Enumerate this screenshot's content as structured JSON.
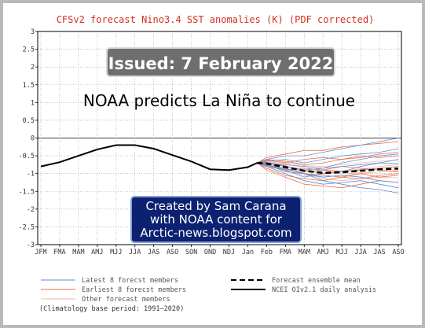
{
  "chart_data": {
    "type": "line",
    "title": "CFSv2 forecast Nino3.4 SST anomalies (K) (PDF corrected)",
    "categories": [
      "JFM",
      "FMA",
      "MAM",
      "AMJ",
      "MJJ",
      "JJA",
      "JAS",
      "ASO",
      "SON",
      "OND",
      "NDJ",
      "Jan",
      "Feb",
      "FMA",
      "MAM",
      "AMJ",
      "MJJ",
      "JJA",
      "JAS",
      "ASO"
    ],
    "ylim": [
      -3,
      3
    ],
    "yticks": [
      "3",
      "2.5",
      "2",
      "1.5",
      "1",
      "0.5",
      "0",
      "-0.5",
      "-1",
      "-1.5",
      "-2",
      "-2.5",
      "-3"
    ],
    "analysis": {
      "name": "NCEI OIv2.1 daily analysis",
      "x": [
        0,
        1,
        2,
        3,
        4,
        5,
        6,
        7,
        8,
        9,
        10,
        11,
        11.5
      ],
      "y": [
        -0.8,
        -0.68,
        -0.5,
        -0.32,
        -0.2,
        -0.2,
        -0.3,
        -0.48,
        -0.66,
        -0.88,
        -0.9,
        -0.82,
        -0.7
      ]
    },
    "ensemble_mean": {
      "name": "Forecast ensemble mean",
      "x": [
        11.5,
        12,
        13,
        14,
        15,
        16,
        17,
        18,
        19
      ],
      "y": [
        -0.7,
        -0.72,
        -0.82,
        -0.92,
        -0.98,
        -0.96,
        -0.92,
        -0.88,
        -0.86
      ]
    },
    "members": {
      "x": [
        11.5,
        12,
        13,
        14,
        15,
        16,
        17,
        18,
        19
      ],
      "latest": [
        [
          -0.7,
          -0.6,
          -0.5,
          -0.5,
          -0.4,
          -0.3,
          -0.2,
          -0.1,
          0.0
        ],
        [
          -0.7,
          -0.65,
          -0.6,
          -0.7,
          -0.6,
          -0.5,
          -0.45,
          -0.4,
          -0.3
        ],
        [
          -0.7,
          -0.7,
          -0.8,
          -0.9,
          -0.85,
          -0.7,
          -0.6,
          -0.5,
          -0.45
        ],
        [
          -0.7,
          -0.75,
          -0.9,
          -1.1,
          -1.0,
          -0.95,
          -0.8,
          -0.7,
          -0.6
        ],
        [
          -0.7,
          -0.8,
          -1.0,
          -1.2,
          -1.3,
          -1.25,
          -1.2,
          -1.3,
          -1.4
        ],
        [
          -0.7,
          -0.75,
          -0.95,
          -1.0,
          -1.1,
          -1.05,
          -1.1,
          -1.2,
          -1.25
        ],
        [
          -0.7,
          -0.7,
          -0.75,
          -0.8,
          -0.85,
          -0.8,
          -0.75,
          -0.7,
          -0.72
        ],
        [
          -0.7,
          -0.78,
          -0.85,
          -1.0,
          -1.2,
          -1.3,
          -1.4,
          -1.45,
          -1.55
        ]
      ],
      "earliest": [
        [
          -0.7,
          -0.55,
          -0.45,
          -0.35,
          -0.35,
          -0.25,
          -0.2,
          -0.15,
          -0.1
        ],
        [
          -0.7,
          -0.62,
          -0.7,
          -0.6,
          -0.55,
          -0.6,
          -0.5,
          -0.55,
          -0.5
        ],
        [
          -0.7,
          -0.8,
          -0.9,
          -0.85,
          -0.9,
          -0.8,
          -0.85,
          -0.9,
          -0.95
        ],
        [
          -0.7,
          -0.85,
          -1.05,
          -1.15,
          -1.2,
          -1.1,
          -1.15,
          -1.05,
          -1.0
        ],
        [
          -0.7,
          -0.9,
          -1.1,
          -1.3,
          -1.35,
          -1.4,
          -1.3,
          -1.2,
          -1.25
        ],
        [
          -0.7,
          -0.68,
          -0.78,
          -0.95,
          -0.9,
          -0.95,
          -0.9,
          -0.85,
          -0.8
        ],
        [
          -0.7,
          -0.72,
          -0.88,
          -1.0,
          -1.05,
          -1.1,
          -1.0,
          -1.1,
          -1.05
        ],
        [
          -0.7,
          -0.6,
          -0.65,
          -0.75,
          -0.7,
          -0.6,
          -0.55,
          -0.45,
          -0.4
        ]
      ],
      "other": [
        [
          -0.7,
          -0.66,
          -0.72,
          -0.85,
          -0.9,
          -0.92,
          -0.88,
          -0.8,
          -0.75
        ],
        [
          -0.7,
          -0.74,
          -0.92,
          -1.05,
          -1.1,
          -1.05,
          -1.0,
          -0.95,
          -0.9
        ],
        [
          -0.7,
          -0.7,
          -0.8,
          -0.9,
          -1.0,
          -1.0,
          -0.98,
          -0.95,
          -0.92
        ],
        [
          -0.7,
          -0.76,
          -0.86,
          -0.98,
          -1.15,
          -1.2,
          -1.15,
          -1.1,
          -1.12
        ],
        [
          -0.7,
          -0.64,
          -0.68,
          -0.78,
          -0.8,
          -0.75,
          -0.7,
          -0.65,
          -0.62
        ]
      ]
    },
    "legend": [
      {
        "label": "Latest 8 forecst members",
        "color": "#5a8fd8",
        "style": "solid-thin"
      },
      {
        "label": "Earliest 8 forecst members",
        "color": "#e8704c",
        "style": "solid-thin"
      },
      {
        "label": "Other forecast members",
        "color": "#f0b8a8",
        "style": "solid-thin"
      },
      {
        "label": "Forecast ensemble mean",
        "color": "#000000",
        "style": "dashed-thick"
      },
      {
        "label": "NCEI OIv2.1 daily analysis",
        "color": "#000000",
        "style": "solid-thick"
      }
    ],
    "footnote": "(Climatology base period: 1991–2020)",
    "grid": true
  },
  "overlays": {
    "issued": "Issued: 7 February 2022",
    "headline": "NOAA predicts La Niña to continue",
    "credit_lines": [
      "Created by Sam Carana",
      "with NOAA content for",
      "Arctic-news.blogspot.com"
    ]
  }
}
